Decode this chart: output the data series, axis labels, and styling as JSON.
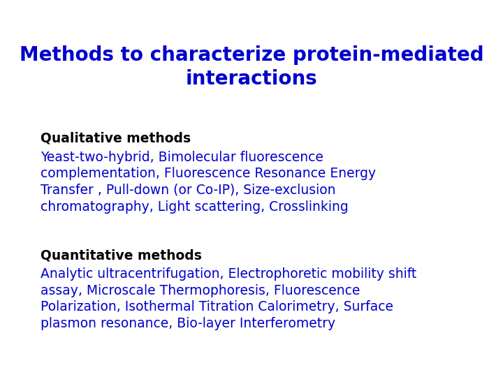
{
  "title_line1": "Methods to characterize protein-mediated",
  "title_line2": "interactions",
  "title_color": "#0000CC",
  "title_fontsize": 20,
  "bg_color": "#FFFFFF",
  "section1_header": "Qualitative methods",
  "section1_header_color": "#000000",
  "section1_text_line1": "Yeast-two-hybrid, Bimolecular fluorescence",
  "section1_text_line2": "complementation, Fluorescence Resonance Energy",
  "section1_text_line3": "Transfer , Pull-down (or Co-IP), Size-exclusion",
  "section1_text_line4": "chromatography, Light scattering, Crosslinking",
  "section1_text_color": "#0000CC",
  "section2_header": "Quantitative methods",
  "section2_header_color": "#000000",
  "section2_text_line1": "Analytic ultracentrifugation, Electrophoretic mobility shift",
  "section2_text_line2": "assay, Microscale Thermophoresis, Fluorescence",
  "section2_text_line3": "Polarization, Isothermal Titration Calorimetry, Surface",
  "section2_text_line4": "plasmon resonance, Bio-layer Interferometry",
  "section2_text_color": "#0000CC",
  "text_fontsize": 13.5,
  "header_fontsize": 13.5
}
